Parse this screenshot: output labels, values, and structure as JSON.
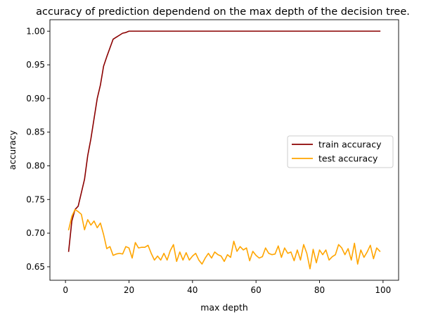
{
  "chart_data": {
    "type": "line",
    "title": "accuracy of prediction dependend on the max depth of the decision tree.",
    "xlabel": "max depth",
    "ylabel": "accuracy",
    "xlim": [
      -4.9,
      104.9
    ],
    "ylim": [
      0.63,
      1.017
    ],
    "xticks": [
      0,
      20,
      40,
      60,
      80,
      100
    ],
    "yticks": [
      0.65,
      0.7,
      0.75,
      0.8,
      0.85,
      0.9,
      0.95,
      1.0
    ],
    "ytick_labels": [
      "0.65",
      "0.70",
      "0.75",
      "0.80",
      "0.85",
      "0.90",
      "0.95",
      "1.00"
    ],
    "grid": false,
    "legend_position": "center-right",
    "x_start": 1,
    "series": [
      {
        "name": "train accuracy",
        "color": "#8b0000",
        "values": [
          0.673,
          0.718,
          0.735,
          0.74,
          0.76,
          0.78,
          0.815,
          0.84,
          0.87,
          0.9,
          0.92,
          0.948,
          0.962,
          0.975,
          0.988,
          0.991,
          0.994,
          0.997,
          0.998,
          1.0,
          1.0,
          1.0,
          1.0,
          1.0,
          1.0,
          1.0,
          1.0,
          1.0,
          1.0,
          1.0,
          1.0,
          1.0,
          1.0,
          1.0,
          1.0,
          1.0,
          1.0,
          1.0,
          1.0,
          1.0,
          1.0,
          1.0,
          1.0,
          1.0,
          1.0,
          1.0,
          1.0,
          1.0,
          1.0,
          1.0,
          1.0,
          1.0,
          1.0,
          1.0,
          1.0,
          1.0,
          1.0,
          1.0,
          1.0,
          1.0,
          1.0,
          1.0,
          1.0,
          1.0,
          1.0,
          1.0,
          1.0,
          1.0,
          1.0,
          1.0,
          1.0,
          1.0,
          1.0,
          1.0,
          1.0,
          1.0,
          1.0,
          1.0,
          1.0,
          1.0,
          1.0,
          1.0,
          1.0,
          1.0,
          1.0,
          1.0,
          1.0,
          1.0,
          1.0,
          1.0,
          1.0,
          1.0,
          1.0,
          1.0,
          1.0,
          1.0,
          1.0,
          1.0,
          1.0
        ]
      },
      {
        "name": "test accuracy",
        "color": "#ffa500",
        "values": [
          0.705,
          0.725,
          0.735,
          0.732,
          0.728,
          0.705,
          0.72,
          0.712,
          0.718,
          0.708,
          0.715,
          0.698,
          0.677,
          0.68,
          0.667,
          0.669,
          0.67,
          0.669,
          0.68,
          0.678,
          0.663,
          0.686,
          0.678,
          0.679,
          0.679,
          0.682,
          0.67,
          0.66,
          0.666,
          0.66,
          0.67,
          0.66,
          0.674,
          0.683,
          0.658,
          0.672,
          0.66,
          0.671,
          0.66,
          0.666,
          0.67,
          0.66,
          0.654,
          0.663,
          0.67,
          0.663,
          0.672,
          0.668,
          0.666,
          0.658,
          0.668,
          0.664,
          0.688,
          0.673,
          0.68,
          0.675,
          0.678,
          0.659,
          0.673,
          0.667,
          0.663,
          0.665,
          0.678,
          0.67,
          0.668,
          0.669,
          0.681,
          0.664,
          0.678,
          0.67,
          0.672,
          0.659,
          0.675,
          0.66,
          0.683,
          0.67,
          0.647,
          0.676,
          0.656,
          0.675,
          0.668,
          0.675,
          0.66,
          0.665,
          0.668,
          0.683,
          0.678,
          0.668,
          0.677,
          0.66,
          0.685,
          0.654,
          0.675,
          0.664,
          0.672,
          0.682,
          0.662,
          0.678,
          0.673
        ]
      }
    ]
  }
}
